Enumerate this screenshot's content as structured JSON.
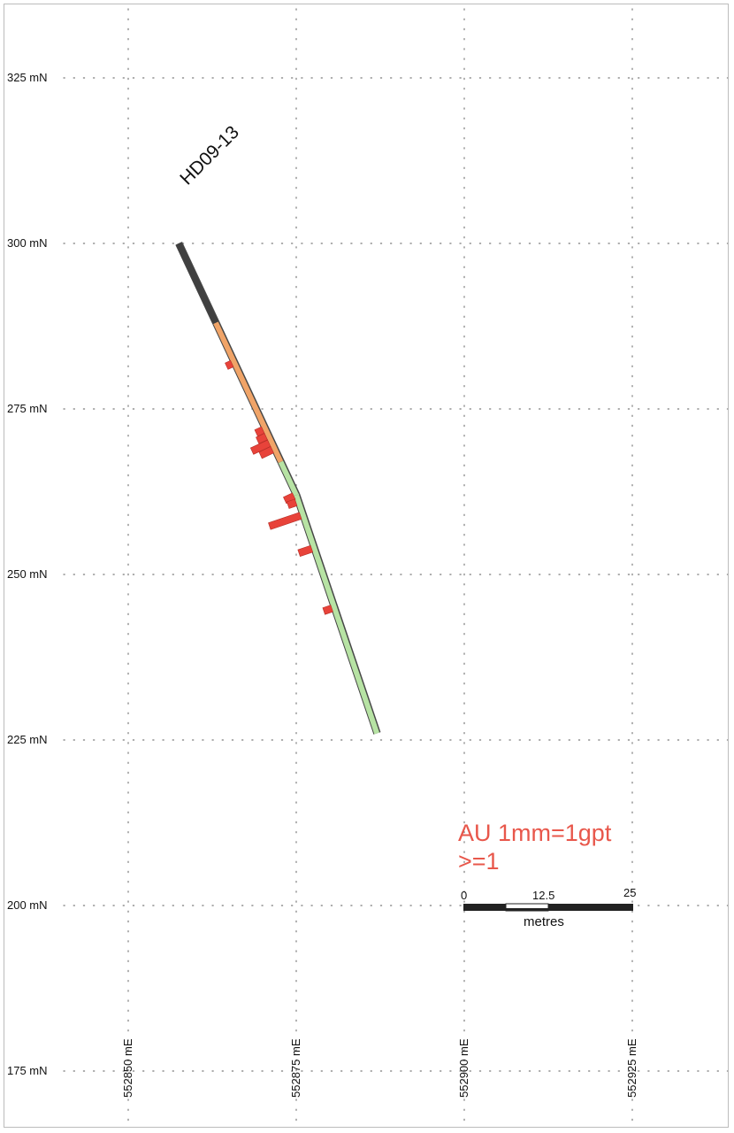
{
  "hole_id": "HD09-13",
  "northing_labels": [
    "325 mN",
    "300 mN",
    "275 mN",
    "250 mN",
    "225 mN",
    "200 mN",
    "175 mN"
  ],
  "northing_values": [
    325,
    300,
    275,
    250,
    225,
    200,
    175
  ],
  "easting_labels": [
    "552850 mE",
    "552875 mE",
    "552900 mE",
    "552925 mE"
  ],
  "easting_values": [
    552850,
    552875,
    552900,
    552925
  ],
  "legend": {
    "line1": "AU 1mm=1gpt",
    "line2": ">=1"
  },
  "scale_bar": {
    "tick_labels": [
      "0",
      "12.5",
      "25"
    ],
    "unit_label": "metres"
  },
  "colors": {
    "grid_dots": "#7a7a7a",
    "collar_segment": "#404040",
    "orange_segment": "#f0a468",
    "green_segment": "#b7e3a4",
    "assay_bars": "#e8433a",
    "legend_text": "#e8574b",
    "label_text": "#111111"
  },
  "drillhole": {
    "collar": [
      552857.5,
      300
    ],
    "bend": [
      552875,
      262
    ],
    "end": [
      552887,
      226
    ],
    "lithology": [
      {
        "name": "collar",
        "from_n": 300,
        "to_n": 288,
        "color_key": "collar_segment"
      },
      {
        "name": "orange-unit",
        "from_n": 288,
        "to_n": 267,
        "color_key": "orange_segment"
      },
      {
        "name": "green-unit",
        "from_n": 267,
        "to_n": 226,
        "color_key": "green_segment"
      }
    ]
  },
  "assays_gpt": [
    {
      "n": 282,
      "value": 1.2
    },
    {
      "n": 272,
      "value": 1.5
    },
    {
      "n": 271,
      "value": 1.9
    },
    {
      "n": 270,
      "value": 3.8
    },
    {
      "n": 269,
      "value": 2.6
    },
    {
      "n": 262,
      "value": 2.0
    },
    {
      "n": 261,
      "value": 1.7
    },
    {
      "n": 259,
      "value": 6.6
    },
    {
      "n": 254,
      "value": 2.7
    },
    {
      "n": 245,
      "value": 1.7
    }
  ]
}
